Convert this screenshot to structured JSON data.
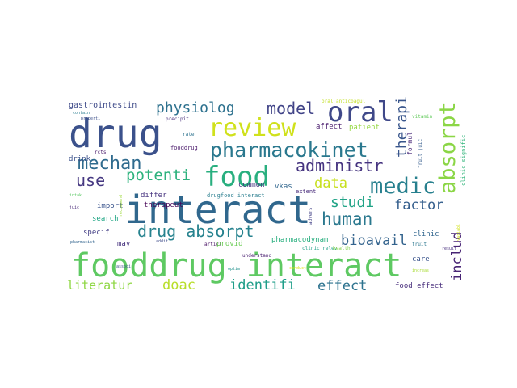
{
  "words": [
    {
      "text": "fooddrug interact",
      "color": "#5ec962"
    },
    {
      "text": "interact",
      "color": "#30678d"
    },
    {
      "text": "drug",
      "color": "#3b518b"
    },
    {
      "text": "food",
      "color": "#29af7f"
    },
    {
      "text": "oral",
      "color": "#3f4889"
    },
    {
      "text": "review",
      "color": "#d0e11c"
    },
    {
      "text": "pharmacokinet",
      "color": "#2a788e"
    },
    {
      "text": "absorpt",
      "color": "#8bd646"
    },
    {
      "text": "medic",
      "color": "#27808e"
    },
    {
      "text": "human",
      "color": "#2a788e"
    },
    {
      "text": "drug absorpt",
      "color": "#26828e"
    },
    {
      "text": "mechan",
      "color": "#2f6b8e"
    },
    {
      "text": "model",
      "color": "#404387"
    },
    {
      "text": "physiolog",
      "color": "#2d718e"
    },
    {
      "text": "administr",
      "color": "#463480"
    },
    {
      "text": "potenti",
      "color": "#2db27d"
    },
    {
      "text": "use",
      "color": "#453781"
    },
    {
      "text": "studi",
      "color": "#20a386"
    },
    {
      "text": "data",
      "color": "#c8e020"
    },
    {
      "text": "therapi",
      "color": "#39568c"
    },
    {
      "text": "factor",
      "color": "#355f8d"
    },
    {
      "text": "bioavail",
      "color": "#33638d"
    },
    {
      "text": "includ",
      "color": "#482475"
    },
    {
      "text": "identifi",
      "color": "#1f9e89"
    },
    {
      "text": "effect",
      "color": "#2c728e"
    },
    {
      "text": "literatur",
      "color": "#8fd744"
    },
    {
      "text": "doac",
      "color": "#b8de29"
    },
    {
      "text": "gastrointestin",
      "color": "#3e4a89"
    },
    {
      "text": "oral anticoagul",
      "color": "#c2df23"
    },
    {
      "text": "affect",
      "color": "#481a6c"
    },
    {
      "text": "patient",
      "color": "#95d840"
    },
    {
      "text": "vitamin",
      "color": "#65cb5e"
    },
    {
      "text": "precipit",
      "color": "#472c7a"
    },
    {
      "text": "properti",
      "color": "#3c4f8a"
    },
    {
      "text": "contain",
      "color": "#287c8e"
    },
    {
      "text": "therapeut",
      "color": "#440154"
    },
    {
      "text": "rate",
      "color": "#2c728e"
    },
    {
      "text": "fooddrug",
      "color": "#481769"
    },
    {
      "text": "drink",
      "color": "#3b528b"
    },
    {
      "text": "rcts",
      "color": "#48186a"
    },
    {
      "text": "common",
      "color": "#453882"
    },
    {
      "text": "advers",
      "color": "#424086"
    },
    {
      "text": "formul",
      "color": "#482979"
    },
    {
      "text": "fruit juic",
      "color": "#365d8d"
    },
    {
      "text": "clinic signific",
      "color": "#31b57b"
    },
    {
      "text": "vkas",
      "color": "#31668e"
    },
    {
      "text": "differ",
      "color": "#46337f"
    },
    {
      "text": "drugfood interact",
      "color": "#287d8e"
    },
    {
      "text": "extent",
      "color": "#472a7a"
    },
    {
      "text": "import",
      "color": "#3a548c"
    },
    {
      "text": "search",
      "color": "#21a685"
    },
    {
      "text": "clinic",
      "color": "#31668e"
    },
    {
      "text": "recommend",
      "color": "#9dd93b"
    },
    {
      "text": "intak",
      "color": "#5ac864"
    },
    {
      "text": "juic",
      "color": "#482878"
    },
    {
      "text": "specif",
      "color": "#433e85"
    },
    {
      "text": "may",
      "color": "#46327e"
    },
    {
      "text": "addit",
      "color": "#3e4c8a"
    },
    {
      "text": "articl",
      "color": "#471063"
    },
    {
      "text": "provid",
      "color": "#6ece58"
    },
    {
      "text": "pharmacodynam",
      "color": "#29af7f"
    },
    {
      "text": "care",
      "color": "#3a548c"
    },
    {
      "text": "food effect",
      "color": "#472d7b"
    },
    {
      "text": "pharmacist",
      "color": "#32648e"
    },
    {
      "text": "clinic relev",
      "color": "#1fa088"
    },
    {
      "text": "understand",
      "color": "#481d6f"
    },
    {
      "text": "health",
      "color": "#81d34d"
    },
    {
      "text": "result",
      "color": "#472f7d"
    },
    {
      "text": "fruit",
      "color": "#2a768e"
    },
    {
      "text": "variabl",
      "color": "#d2e21b"
    },
    {
      "text": "associ",
      "color": "#3b528b"
    },
    {
      "text": "optim",
      "color": "#21918c"
    },
    {
      "text": "conduct",
      "color": "#dde318"
    },
    {
      "text": "increas",
      "color": "#a8db34"
    }
  ]
}
